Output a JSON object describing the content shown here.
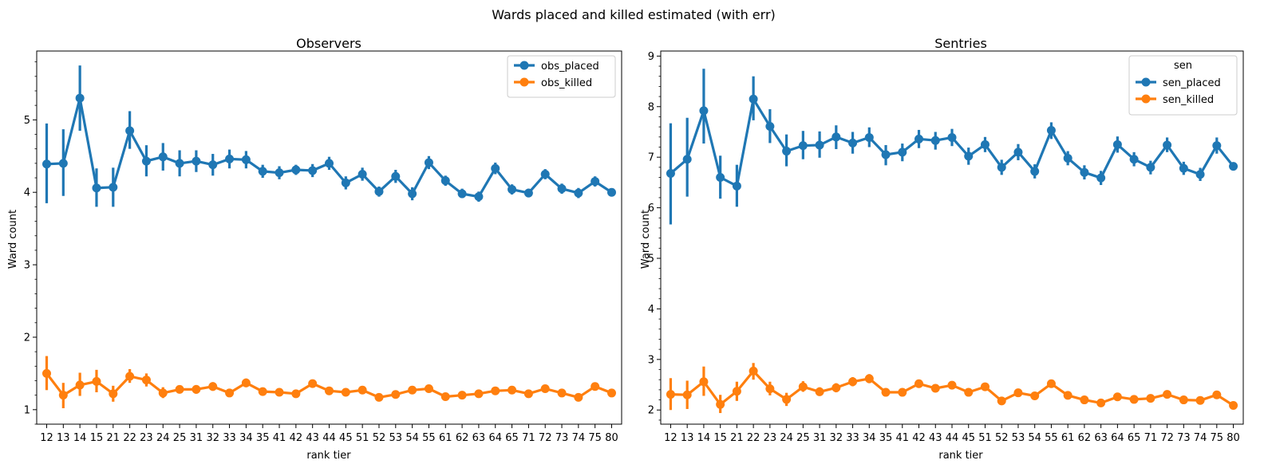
{
  "figure": {
    "suptitle": "Wards placed and killed estimated (with err)"
  },
  "chart_data": [
    {
      "type": "line",
      "title": "Observers",
      "xlabel": "rank tier",
      "ylabel": "Ward count",
      "ylim": [
        0.8,
        5.95
      ],
      "yticks": [
        1,
        2,
        3,
        4,
        5
      ],
      "grid": false,
      "legend": {
        "title": "",
        "placement": "top-right"
      },
      "categories": [
        "12",
        "13",
        "14",
        "15",
        "21",
        "22",
        "23",
        "24",
        "25",
        "31",
        "32",
        "33",
        "34",
        "35",
        "41",
        "42",
        "43",
        "44",
        "45",
        "51",
        "52",
        "53",
        "54",
        "55",
        "61",
        "62",
        "63",
        "64",
        "65",
        "71",
        "72",
        "73",
        "74",
        "75",
        "80"
      ],
      "series": [
        {
          "name": "obs_placed",
          "color": "#1f77b4",
          "values": [
            4.39,
            4.4,
            5.3,
            4.06,
            4.07,
            4.85,
            4.43,
            4.49,
            4.4,
            4.43,
            4.38,
            4.46,
            4.45,
            4.29,
            4.27,
            4.31,
            4.3,
            4.4,
            4.13,
            4.25,
            4.01,
            4.22,
            3.98,
            4.41,
            4.16,
            3.98,
            3.94,
            4.33,
            4.04,
            3.99,
            4.25,
            4.05,
            3.99,
            4.15,
            4.0
          ],
          "err_low": [
            3.85,
            3.95,
            4.85,
            3.8,
            3.8,
            4.6,
            4.22,
            4.3,
            4.22,
            4.28,
            4.23,
            4.33,
            4.33,
            4.2,
            4.18,
            4.24,
            4.21,
            4.31,
            4.04,
            4.16,
            3.94,
            4.13,
            3.89,
            4.32,
            4.09,
            3.92,
            3.87,
            4.25,
            3.97,
            3.93,
            4.18,
            3.98,
            3.92,
            4.08,
            3.98
          ],
          "err_high": [
            4.95,
            4.87,
            5.75,
            4.33,
            4.34,
            5.12,
            4.65,
            4.68,
            4.58,
            4.58,
            4.53,
            4.59,
            4.57,
            4.38,
            4.36,
            4.38,
            4.39,
            4.49,
            4.22,
            4.34,
            4.08,
            4.31,
            4.07,
            4.5,
            4.23,
            4.05,
            4.01,
            4.41,
            4.11,
            4.05,
            4.32,
            4.12,
            4.06,
            4.22,
            4.02
          ]
        },
        {
          "name": "obs_killed",
          "color": "#ff7f0e",
          "values": [
            1.5,
            1.2,
            1.34,
            1.39,
            1.22,
            1.46,
            1.41,
            1.23,
            1.28,
            1.28,
            1.32,
            1.23,
            1.37,
            1.25,
            1.24,
            1.22,
            1.36,
            1.26,
            1.24,
            1.27,
            1.17,
            1.21,
            1.27,
            1.29,
            1.18,
            1.2,
            1.22,
            1.26,
            1.27,
            1.22,
            1.29,
            1.23,
            1.17,
            1.32,
            1.23
          ],
          "err_low": [
            1.27,
            1.02,
            1.19,
            1.24,
            1.11,
            1.37,
            1.32,
            1.16,
            1.23,
            1.22,
            1.26,
            1.18,
            1.31,
            1.21,
            1.19,
            1.18,
            1.31,
            1.22,
            1.2,
            1.23,
            1.13,
            1.17,
            1.23,
            1.25,
            1.15,
            1.17,
            1.19,
            1.22,
            1.23,
            1.19,
            1.25,
            1.2,
            1.14,
            1.28,
            1.21
          ],
          "err_high": [
            1.74,
            1.37,
            1.51,
            1.55,
            1.33,
            1.56,
            1.5,
            1.31,
            1.33,
            1.34,
            1.38,
            1.29,
            1.43,
            1.29,
            1.28,
            1.27,
            1.41,
            1.3,
            1.28,
            1.31,
            1.21,
            1.25,
            1.31,
            1.33,
            1.21,
            1.23,
            1.25,
            1.3,
            1.31,
            1.25,
            1.33,
            1.26,
            1.2,
            1.36,
            1.25
          ]
        }
      ]
    },
    {
      "type": "line",
      "title": "Sentries",
      "xlabel": "rank tier",
      "ylabel": "Ward count",
      "ylim": [
        1.72,
        9.1
      ],
      "yticks": [
        2,
        3,
        4,
        5,
        6,
        7,
        8,
        9
      ],
      "grid": false,
      "legend": {
        "title": "sen",
        "placement": "top-right"
      },
      "categories": [
        "12",
        "13",
        "14",
        "15",
        "21",
        "22",
        "23",
        "24",
        "25",
        "31",
        "32",
        "33",
        "34",
        "35",
        "41",
        "42",
        "43",
        "44",
        "45",
        "51",
        "52",
        "53",
        "54",
        "55",
        "61",
        "62",
        "63",
        "64",
        "65",
        "71",
        "72",
        "73",
        "74",
        "75",
        "80"
      ],
      "series": [
        {
          "name": "sen_placed",
          "color": "#1f77b4",
          "values": [
            6.68,
            6.96,
            7.92,
            6.6,
            6.43,
            8.15,
            7.61,
            7.12,
            7.23,
            7.24,
            7.4,
            7.28,
            7.39,
            7.05,
            7.1,
            7.36,
            7.33,
            7.39,
            7.02,
            7.25,
            6.8,
            7.1,
            6.72,
            7.53,
            6.98,
            6.7,
            6.59,
            7.25,
            6.96,
            6.8,
            7.24,
            6.78,
            6.66,
            7.23,
            6.82
          ],
          "err_low": [
            5.67,
            6.22,
            7.27,
            6.18,
            6.02,
            7.73,
            7.28,
            6.82,
            6.96,
            6.99,
            7.16,
            7.07,
            7.2,
            6.84,
            6.92,
            7.18,
            7.15,
            7.22,
            6.85,
            7.1,
            6.65,
            6.94,
            6.58,
            7.36,
            6.84,
            6.56,
            6.45,
            7.09,
            6.82,
            6.66,
            7.1,
            6.65,
            6.53,
            7.07,
            6.78
          ],
          "err_high": [
            7.67,
            7.78,
            8.75,
            7.03,
            6.85,
            8.6,
            7.95,
            7.45,
            7.52,
            7.51,
            7.63,
            7.5,
            7.59,
            7.24,
            7.27,
            7.54,
            7.5,
            7.56,
            7.19,
            7.4,
            6.95,
            7.26,
            6.86,
            7.69,
            7.12,
            6.84,
            6.73,
            7.41,
            7.1,
            6.93,
            7.39,
            6.91,
            6.79,
            7.39,
            6.86
          ]
        },
        {
          "name": "sen_killed",
          "color": "#ff7f0e",
          "values": [
            2.31,
            2.3,
            2.56,
            2.11,
            2.37,
            2.77,
            2.42,
            2.21,
            2.46,
            2.36,
            2.44,
            2.56,
            2.62,
            2.35,
            2.35,
            2.52,
            2.43,
            2.49,
            2.35,
            2.46,
            2.18,
            2.34,
            2.28,
            2.52,
            2.29,
            2.2,
            2.14,
            2.26,
            2.21,
            2.23,
            2.31,
            2.2,
            2.19,
            2.3,
            2.09
          ],
          "err_low": [
            2.0,
            2.02,
            2.28,
            1.94,
            2.18,
            2.6,
            2.29,
            2.08,
            2.36,
            2.28,
            2.35,
            2.47,
            2.53,
            2.28,
            2.28,
            2.45,
            2.37,
            2.43,
            2.29,
            2.4,
            2.12,
            2.28,
            2.23,
            2.46,
            2.24,
            2.15,
            2.09,
            2.21,
            2.17,
            2.19,
            2.27,
            2.17,
            2.15,
            2.26,
            2.07
          ],
          "err_high": [
            2.63,
            2.58,
            2.86,
            2.3,
            2.56,
            2.93,
            2.56,
            2.34,
            2.57,
            2.45,
            2.53,
            2.65,
            2.71,
            2.42,
            2.42,
            2.59,
            2.49,
            2.55,
            2.41,
            2.52,
            2.24,
            2.4,
            2.34,
            2.58,
            2.35,
            2.25,
            2.2,
            2.31,
            2.26,
            2.27,
            2.35,
            2.24,
            2.23,
            2.35,
            2.12
          ]
        }
      ]
    }
  ]
}
